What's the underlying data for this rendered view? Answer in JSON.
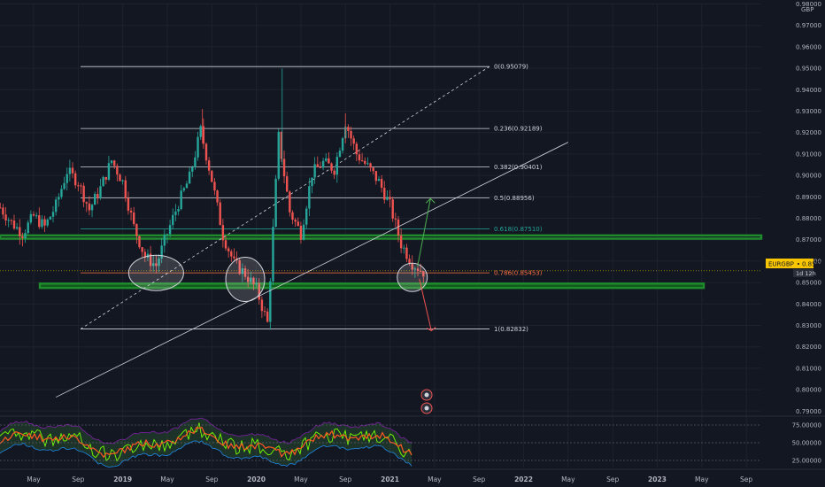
{
  "chart_data": {
    "type": "candlestick",
    "symbol": "EURGBP",
    "currency_label": "GBP",
    "last_price": "0.8555",
    "last_price_suffix": "4",
    "countdown": "1d 12h",
    "price_axis": {
      "min": 0.78,
      "max": 0.98,
      "ticks": [
        "0.98000",
        "0.97000",
        "0.96000",
        "0.95000",
        "0.94000",
        "0.93000",
        "0.92000",
        "0.91000",
        "0.90000",
        "0.89000",
        "0.88000",
        "0.87000",
        "0.86000",
        "0.85000",
        "0.84000",
        "0.83000",
        "0.82000",
        "0.81000",
        "0.80000",
        "0.79000"
      ]
    },
    "time_axis": {
      "labels": [
        {
          "t": "2018-05",
          "text": "May",
          "bold": false
        },
        {
          "t": "2018-09",
          "text": "Sep",
          "bold": false
        },
        {
          "t": "2019-01",
          "text": "2019",
          "bold": true
        },
        {
          "t": "2019-05",
          "text": "May",
          "bold": false
        },
        {
          "t": "2019-09",
          "text": "Sep",
          "bold": false
        },
        {
          "t": "2020-01",
          "text": "2020",
          "bold": true
        },
        {
          "t": "2020-05",
          "text": "May",
          "bold": false
        },
        {
          "t": "2020-09",
          "text": "Sep",
          "bold": false
        },
        {
          "t": "2021-01",
          "text": "2021",
          "bold": true
        },
        {
          "t": "2021-05",
          "text": "May",
          "bold": false
        },
        {
          "t": "2021-09",
          "text": "Sep",
          "bold": false
        },
        {
          "t": "2022-01",
          "text": "2022",
          "bold": true
        },
        {
          "t": "2022-05",
          "text": "May",
          "bold": false
        },
        {
          "t": "2022-09",
          "text": "Sep",
          "bold": false
        },
        {
          "t": "2023-01",
          "text": "2023",
          "bold": true
        },
        {
          "t": "2023-05",
          "text": "May",
          "bold": false
        },
        {
          "t": "2023-09",
          "text": "Sep",
          "bold": false
        }
      ]
    },
    "price_path": [
      [
        "2018-02",
        0.885
      ],
      [
        "2018-03",
        0.878
      ],
      [
        "2018-04",
        0.873
      ],
      [
        "2018-05",
        0.881
      ],
      [
        "2018-06",
        0.876
      ],
      [
        "2018-07",
        0.886
      ],
      [
        "2018-08",
        0.902
      ],
      [
        "2018-09",
        0.897
      ],
      [
        "2018-10",
        0.884
      ],
      [
        "2018-11",
        0.894
      ],
      [
        "2018-12",
        0.907
      ],
      [
        "2019-01",
        0.897
      ],
      [
        "2019-02",
        0.876
      ],
      [
        "2019-03",
        0.862
      ],
      [
        "2019-04",
        0.858
      ],
      [
        "2019-05",
        0.873
      ],
      [
        "2019-06",
        0.887
      ],
      [
        "2019-07",
        0.899
      ],
      [
        "2019-08",
        0.921
      ],
      [
        "2019-09",
        0.898
      ],
      [
        "2019-10",
        0.872
      ],
      [
        "2019-11",
        0.859
      ],
      [
        "2019-12",
        0.854
      ],
      [
        "2020-01",
        0.847
      ],
      [
        "2020-02",
        0.831
      ],
      [
        "2020-03",
        0.918
      ],
      [
        "2020-04",
        0.883
      ],
      [
        "2020-05",
        0.873
      ],
      [
        "2020-06",
        0.901
      ],
      [
        "2020-07",
        0.906
      ],
      [
        "2020-08",
        0.903
      ],
      [
        "2020-09",
        0.925
      ],
      [
        "2020-10",
        0.91
      ],
      [
        "2020-11",
        0.904
      ],
      [
        "2020-12",
        0.897
      ],
      [
        "2021-01",
        0.886
      ],
      [
        "2021-02",
        0.868
      ],
      [
        "2021-03",
        0.859
      ],
      [
        "2021-04",
        0.855
      ]
    ],
    "fib_levels": [
      {
        "ratio": "0",
        "price": "0.95079",
        "value": 0.95079,
        "color": "#d1d4dc"
      },
      {
        "ratio": "0.236",
        "price": "0.92189",
        "value": 0.92189,
        "color": "#d1d4dc"
      },
      {
        "ratio": "0.382",
        "price": "0.90401",
        "value": 0.90401,
        "color": "#d1d4dc"
      },
      {
        "ratio": "0.5",
        "price": "0.88956",
        "value": 0.88956,
        "color": "#d1d4dc"
      },
      {
        "ratio": "0.618",
        "price": "0.87510",
        "value": 0.8751,
        "color": "#26a69a"
      },
      {
        "ratio": "0.786",
        "price": "0.85453",
        "value": 0.85453,
        "color": "#ff7043"
      },
      {
        "ratio": "1",
        "price": "0.82832",
        "value": 0.82832,
        "color": "#d1d4dc"
      }
    ],
    "zones": [
      {
        "name": "upper-support-zone",
        "y1": 0.872,
        "y2": 0.8705,
        "color": "#1f8b2c"
      },
      {
        "name": "lower-support-zone",
        "y1": 0.8495,
        "y2": 0.8475,
        "color": "#1f8b2c"
      }
    ],
    "indicator": {
      "ticks": [
        "75.00000",
        "50.00000",
        "25.00000"
      ],
      "levels": [
        75,
        50,
        25
      ]
    },
    "colors": {
      "background": "#131722",
      "up": "#26a69a",
      "down": "#ef5350",
      "grid": "#1e222d",
      "zone": "#1f8b2c",
      "price_tag": "#f7c600"
    }
  }
}
